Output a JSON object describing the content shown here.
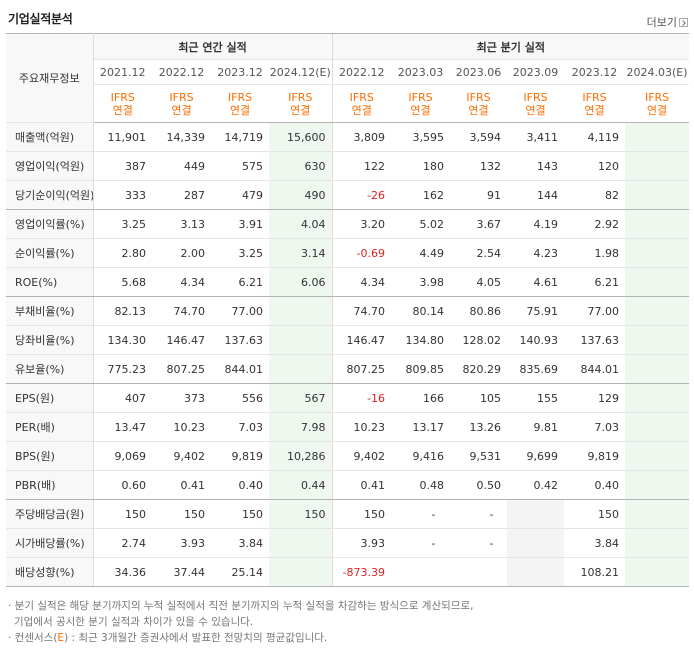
{
  "section_title": "기업실적분석",
  "more_label": "더보기",
  "header": {
    "row_label": "주요재무정보",
    "annual_group": "최근 연간 실적",
    "quarter_group": "최근 분기 실적",
    "periods": [
      "2021.12",
      "2022.12",
      "2023.12",
      "2024.12(E)",
      "2022.12",
      "2023.03",
      "2023.06",
      "2023.09",
      "2023.12",
      "2024.03(E)"
    ],
    "ifrs_top": "IFRS",
    "ifrs_bottom": "연결"
  },
  "rows": [
    {
      "label": "매출액(억원)",
      "values": [
        "11,901",
        "14,339",
        "14,719",
        "15,600",
        "3,809",
        "3,595",
        "3,594",
        "3,411",
        "4,119",
        ""
      ]
    },
    {
      "label": "영업이익(억원)",
      "values": [
        "387",
        "449",
        "575",
        "630",
        "122",
        "180",
        "132",
        "143",
        "120",
        ""
      ]
    },
    {
      "label": "당기순이익(억원)",
      "values": [
        "333",
        "287",
        "479",
        "490",
        "-26",
        "162",
        "91",
        "144",
        "82",
        ""
      ]
    },
    {
      "label": "영업이익률(%)",
      "values": [
        "3.25",
        "3.13",
        "3.91",
        "4.04",
        "3.20",
        "5.02",
        "3.67",
        "4.19",
        "2.92",
        ""
      ]
    },
    {
      "label": "순이익률(%)",
      "values": [
        "2.80",
        "2.00",
        "3.25",
        "3.14",
        "-0.69",
        "4.49",
        "2.54",
        "4.23",
        "1.98",
        ""
      ]
    },
    {
      "label": "ROE(%)",
      "values": [
        "5.68",
        "4.34",
        "6.21",
        "6.06",
        "4.34",
        "3.98",
        "4.05",
        "4.61",
        "6.21",
        ""
      ]
    },
    {
      "label": "부채비율(%)",
      "values": [
        "82.13",
        "74.70",
        "77.00",
        "",
        "74.70",
        "80.14",
        "80.86",
        "75.91",
        "77.00",
        ""
      ]
    },
    {
      "label": "당좌비율(%)",
      "values": [
        "134.30",
        "146.47",
        "137.63",
        "",
        "146.47",
        "134.80",
        "128.02",
        "140.93",
        "137.63",
        ""
      ]
    },
    {
      "label": "유보율(%)",
      "values": [
        "775.23",
        "807.25",
        "844.01",
        "",
        "807.25",
        "809.85",
        "820.29",
        "835.69",
        "844.01",
        ""
      ]
    },
    {
      "label": "EPS(원)",
      "values": [
        "407",
        "373",
        "556",
        "567",
        "-16",
        "166",
        "105",
        "155",
        "129",
        ""
      ]
    },
    {
      "label": "PER(배)",
      "values": [
        "13.47",
        "10.23",
        "7.03",
        "7.98",
        "10.23",
        "13.17",
        "13.26",
        "9.81",
        "7.03",
        ""
      ]
    },
    {
      "label": "BPS(원)",
      "values": [
        "9,069",
        "9,402",
        "9,819",
        "10,286",
        "9,402",
        "9,416",
        "9,531",
        "9,699",
        "9,819",
        ""
      ]
    },
    {
      "label": "PBR(배)",
      "values": [
        "0.60",
        "0.41",
        "0.40",
        "0.44",
        "0.41",
        "0.48",
        "0.50",
        "0.42",
        "0.40",
        ""
      ]
    },
    {
      "label": "주당배당금(원)",
      "values": [
        "150",
        "150",
        "150",
        "150",
        "150",
        "-",
        "-",
        "",
        "150",
        ""
      ]
    },
    {
      "label": "시가배당률(%)",
      "values": [
        "2.74",
        "3.93",
        "3.84",
        "",
        "3.93",
        "-",
        "-",
        "",
        "3.84",
        ""
      ]
    },
    {
      "label": "배당성향(%)",
      "values": [
        "34.36",
        "37.44",
        "25.14",
        "",
        "-873.39",
        "",
        "",
        "",
        "108.21",
        ""
      ]
    }
  ],
  "notes": {
    "line1": "· 분기 실적은 해당 분기까지의 누적 실적에서 직전 분기까지의 누적 실적을 차감하는 방식으로 계산되므로,",
    "line2": "기업에서 공시한 분기 실적과 차이가 있을 수 있습니다.",
    "line3_prefix": "· 컨센서스(",
    "line3_e": "E",
    "line3_suffix": ") : 최근 3개월간 증권사에서 발표한 전망치의 평균값입니다."
  },
  "colors": {
    "accent": "#ff6c00",
    "negative": "#e02020",
    "estimate_bg": "#eef8ee",
    "header_bg": "#f8f8f8"
  }
}
